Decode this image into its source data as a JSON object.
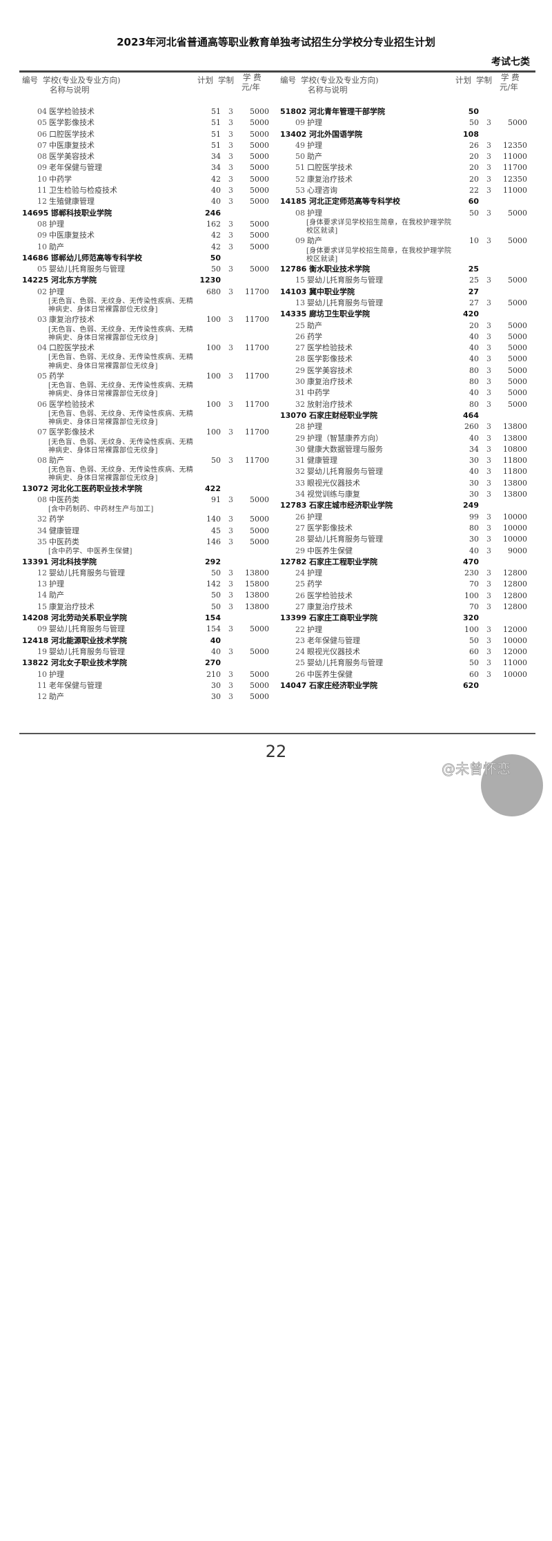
{
  "title": "2023年河北省普通高等职业教育单独考试招生分学校分专业招生计划",
  "category": "考试七类",
  "header": {
    "code": "编号",
    "name1": "学校(专业及专业方向)",
    "name2": "名称与说明",
    "plan": "计划",
    "years": "学制",
    "fee1": "学 费",
    "fee2": "元/年"
  },
  "left": [
    {
      "no": "04",
      "name": "医学检验技术",
      "plan": "51",
      "years": "3",
      "fee": "5000"
    },
    {
      "no": "05",
      "name": "医学影像技术",
      "plan": "51",
      "years": "3",
      "fee": "5000"
    },
    {
      "no": "06",
      "name": "口腔医学技术",
      "plan": "51",
      "years": "3",
      "fee": "5000"
    },
    {
      "no": "07",
      "name": "中医康复技术",
      "plan": "51",
      "years": "3",
      "fee": "5000"
    },
    {
      "no": "08",
      "name": "医学美容技术",
      "plan": "34",
      "years": "3",
      "fee": "5000"
    },
    {
      "no": "09",
      "name": "老年保健与管理",
      "plan": "34",
      "years": "3",
      "fee": "5000"
    },
    {
      "no": "10",
      "name": "中药学",
      "plan": "42",
      "years": "3",
      "fee": "5000"
    },
    {
      "no": "11",
      "name": "卫生检验与检疫技术",
      "plan": "40",
      "years": "3",
      "fee": "5000"
    },
    {
      "no": "12",
      "name": "生殖健康管理",
      "plan": "40",
      "years": "3",
      "fee": "5000"
    },
    {
      "school": true,
      "code": "14695",
      "name": "邯郸科技职业学院",
      "plan": "246"
    },
    {
      "no": "08",
      "name": "护理",
      "plan": "162",
      "years": "3",
      "fee": "5000"
    },
    {
      "no": "09",
      "name": "中医康复技术",
      "plan": "42",
      "years": "3",
      "fee": "5000"
    },
    {
      "no": "10",
      "name": "助产",
      "plan": "42",
      "years": "3",
      "fee": "5000"
    },
    {
      "school": true,
      "code": "14686",
      "name": "邯郸幼儿师范高等专科学校",
      "plan": "50"
    },
    {
      "no": "05",
      "name": "婴幼儿托育服务与管理",
      "plan": "50",
      "years": "3",
      "fee": "5000"
    },
    {
      "school": true,
      "code": "14225",
      "name": "河北东方学院",
      "plan": "1230"
    },
    {
      "no": "02",
      "name": "护理",
      "plan": "680",
      "years": "3",
      "fee": "11700",
      "note": "[无色盲、色弱、无纹身、无传染性疾病、无精神病史、身体日常裸露部位无纹身]"
    },
    {
      "no": "03",
      "name": "康复治疗技术",
      "plan": "100",
      "years": "3",
      "fee": "11700",
      "note": "[无色盲、色弱、无纹身、无传染性疾病、无精神病史、身体日常裸露部位无纹身]"
    },
    {
      "no": "04",
      "name": "口腔医学技术",
      "plan": "100",
      "years": "3",
      "fee": "11700",
      "note": "[无色盲、色弱、无纹身、无传染性疾病、无精神病史、身体日常裸露部位无纹身]"
    },
    {
      "no": "05",
      "name": "药学",
      "plan": "100",
      "years": "3",
      "fee": "11700",
      "note": "[无色盲、色弱、无纹身、无传染性疾病、无精神病史、身体日常裸露部位无纹身]"
    },
    {
      "no": "06",
      "name": "医学检验技术",
      "plan": "100",
      "years": "3",
      "fee": "11700",
      "note": "[无色盲、色弱、无纹身、无传染性疾病、无精神病史、身体日常裸露部位无纹身]"
    },
    {
      "no": "07",
      "name": "医学影像技术",
      "plan": "100",
      "years": "3",
      "fee": "11700",
      "note": "[无色盲、色弱、无纹身、无传染性疾病、无精神病史、身体日常裸露部位无纹身]"
    },
    {
      "no": "08",
      "name": "助产",
      "plan": "50",
      "years": "3",
      "fee": "11700",
      "note": "[无色盲、色弱、无纹身、无传染性疾病、无精神病史、身体日常裸露部位无纹身]"
    },
    {
      "school": true,
      "code": "13072",
      "name": "河北化工医药职业技术学院",
      "plan": "422"
    },
    {
      "no": "08",
      "name": "中医药类",
      "plan": "91",
      "years": "3",
      "fee": "5000",
      "note": "[含中药制药、中药材生产与加工]"
    },
    {
      "no": "32",
      "name": "药学",
      "plan": "140",
      "years": "3",
      "fee": "5000"
    },
    {
      "no": "34",
      "name": "健康管理",
      "plan": "45",
      "years": "3",
      "fee": "5000"
    },
    {
      "no": "35",
      "name": "中医药类",
      "plan": "146",
      "years": "3",
      "fee": "5000",
      "note": "[含中药学、中医养生保健]"
    },
    {
      "school": true,
      "code": "13391",
      "name": "河北科技学院",
      "plan": "292"
    },
    {
      "no": "12",
      "name": "婴幼儿托育服务与管理",
      "plan": "50",
      "years": "3",
      "fee": "13800"
    },
    {
      "no": "13",
      "name": "护理",
      "plan": "142",
      "years": "3",
      "fee": "15800"
    },
    {
      "no": "14",
      "name": "助产",
      "plan": "50",
      "years": "3",
      "fee": "13800"
    },
    {
      "no": "15",
      "name": "康复治疗技术",
      "plan": "50",
      "years": "3",
      "fee": "13800"
    },
    {
      "school": true,
      "code": "14208",
      "name": "河北劳动关系职业学院",
      "plan": "154"
    },
    {
      "no": "09",
      "name": "婴幼儿托育服务与管理",
      "plan": "154",
      "years": "3",
      "fee": "5000"
    },
    {
      "school": true,
      "code": "12418",
      "name": "河北能源职业技术学院",
      "plan": "40"
    },
    {
      "no": "19",
      "name": "婴幼儿托育服务与管理",
      "plan": "40",
      "years": "3",
      "fee": "5000"
    },
    {
      "school": true,
      "code": "13822",
      "name": "河北女子职业技术学院",
      "plan": "270"
    },
    {
      "no": "10",
      "name": "护理",
      "plan": "210",
      "years": "3",
      "fee": "5000"
    },
    {
      "no": "11",
      "name": "老年保健与管理",
      "plan": "30",
      "years": "3",
      "fee": "5000"
    },
    {
      "no": "12",
      "name": "助产",
      "plan": "30",
      "years": "3",
      "fee": "5000"
    }
  ],
  "right": [
    {
      "school": true,
      "code": "51802",
      "name": "河北青年管理干部学院",
      "plan": "50"
    },
    {
      "no": "09",
      "name": "护理",
      "plan": "50",
      "years": "3",
      "fee": "5000"
    },
    {
      "school": true,
      "code": "13402",
      "name": "河北外国语学院",
      "plan": "108"
    },
    {
      "no": "49",
      "name": "护理",
      "plan": "26",
      "years": "3",
      "fee": "12350"
    },
    {
      "no": "50",
      "name": "助产",
      "plan": "20",
      "years": "3",
      "fee": "11000"
    },
    {
      "no": "51",
      "name": "口腔医学技术",
      "plan": "20",
      "years": "3",
      "fee": "11700"
    },
    {
      "no": "52",
      "name": "康复治疗技术",
      "plan": "20",
      "years": "3",
      "fee": "12350"
    },
    {
      "no": "53",
      "name": "心理咨询",
      "plan": "22",
      "years": "3",
      "fee": "11000"
    },
    {
      "school": true,
      "code": "14185",
      "name": "河北正定师范高等专科学校",
      "plan": "60"
    },
    {
      "no": "08",
      "name": "护理",
      "plan": "50",
      "years": "3",
      "fee": "5000",
      "note": "[身体要求详见学校招生简章，在我校护理学院校区就读]"
    },
    {
      "no": "09",
      "name": "助产",
      "plan": "10",
      "years": "3",
      "fee": "5000",
      "note": "[身体要求详见学校招生简章，在我校护理学院校区就读]"
    },
    {
      "school": true,
      "code": "12786",
      "name": "衡水职业技术学院",
      "plan": "25"
    },
    {
      "no": "15",
      "name": "婴幼儿托育服务与管理",
      "plan": "25",
      "years": "3",
      "fee": "5000"
    },
    {
      "school": true,
      "code": "14103",
      "name": "冀中职业学院",
      "plan": "27"
    },
    {
      "no": "13",
      "name": "婴幼儿托育服务与管理",
      "plan": "27",
      "years": "3",
      "fee": "5000"
    },
    {
      "school": true,
      "code": "14335",
      "name": "廊坊卫生职业学院",
      "plan": "420"
    },
    {
      "no": "25",
      "name": "助产",
      "plan": "20",
      "years": "3",
      "fee": "5000"
    },
    {
      "no": "26",
      "name": "药学",
      "plan": "40",
      "years": "3",
      "fee": "5000"
    },
    {
      "no": "27",
      "name": "医学检验技术",
      "plan": "40",
      "years": "3",
      "fee": "5000"
    },
    {
      "no": "28",
      "name": "医学影像技术",
      "plan": "40",
      "years": "3",
      "fee": "5000"
    },
    {
      "no": "29",
      "name": "医学美容技术",
      "plan": "80",
      "years": "3",
      "fee": "5000"
    },
    {
      "no": "30",
      "name": "康复治疗技术",
      "plan": "80",
      "years": "3",
      "fee": "5000"
    },
    {
      "no": "31",
      "name": "中药学",
      "plan": "40",
      "years": "3",
      "fee": "5000"
    },
    {
      "no": "32",
      "name": "放射治疗技术",
      "plan": "80",
      "years": "3",
      "fee": "5000"
    },
    {
      "school": true,
      "code": "13070",
      "name": "石家庄财经职业学院",
      "plan": "464"
    },
    {
      "no": "28",
      "name": "护理",
      "plan": "260",
      "years": "3",
      "fee": "13800"
    },
    {
      "no": "29",
      "name": "护理（智慧康养方向）",
      "plan": "40",
      "years": "3",
      "fee": "13800"
    },
    {
      "no": "30",
      "name": "健康大数据管理与服务",
      "plan": "34",
      "years": "3",
      "fee": "10800"
    },
    {
      "no": "31",
      "name": "健康管理",
      "plan": "30",
      "years": "3",
      "fee": "11800"
    },
    {
      "no": "32",
      "name": "婴幼儿托育服务与管理",
      "plan": "40",
      "years": "3",
      "fee": "11800"
    },
    {
      "no": "33",
      "name": "眼视光仪器技术",
      "plan": "30",
      "years": "3",
      "fee": "13800"
    },
    {
      "no": "34",
      "name": "视觉训练与康复",
      "plan": "30",
      "years": "3",
      "fee": "13800"
    },
    {
      "school": true,
      "code": "12783",
      "name": "石家庄城市经济职业学院",
      "plan": "249"
    },
    {
      "no": "26",
      "name": "护理",
      "plan": "99",
      "years": "3",
      "fee": "10000"
    },
    {
      "no": "27",
      "name": "医学影像技术",
      "plan": "80",
      "years": "3",
      "fee": "10000"
    },
    {
      "no": "28",
      "name": "婴幼儿托育服务与管理",
      "plan": "30",
      "years": "3",
      "fee": "10000"
    },
    {
      "no": "29",
      "name": "中医养生保健",
      "plan": "40",
      "years": "3",
      "fee": "9000"
    },
    {
      "school": true,
      "code": "12782",
      "name": "石家庄工程职业学院",
      "plan": "470"
    },
    {
      "no": "24",
      "name": "护理",
      "plan": "230",
      "years": "3",
      "fee": "12800"
    },
    {
      "no": "25",
      "name": "药学",
      "plan": "70",
      "years": "3",
      "fee": "12800"
    },
    {
      "no": "26",
      "name": "医学检验技术",
      "plan": "100",
      "years": "3",
      "fee": "12800"
    },
    {
      "no": "27",
      "name": "康复治疗技术",
      "plan": "70",
      "years": "3",
      "fee": "12800"
    },
    {
      "school": true,
      "code": "13399",
      "name": "石家庄工商职业学院",
      "plan": "320"
    },
    {
      "no": "22",
      "name": "护理",
      "plan": "100",
      "years": "3",
      "fee": "12000"
    },
    {
      "no": "23",
      "name": "老年保健与管理",
      "plan": "50",
      "years": "3",
      "fee": "10000"
    },
    {
      "no": "24",
      "name": "眼视光仪器技术",
      "plan": "60",
      "years": "3",
      "fee": "12000"
    },
    {
      "no": "25",
      "name": "婴幼儿托育服务与管理",
      "plan": "50",
      "years": "3",
      "fee": "11000"
    },
    {
      "no": "26",
      "name": "中医养生保健",
      "plan": "60",
      "years": "3",
      "fee": "10000"
    },
    {
      "school": true,
      "code": "14047",
      "name": "石家庄经济职业学院",
      "plan": "620"
    }
  ],
  "page_number": "22",
  "watermark": "@未曾怀恋"
}
